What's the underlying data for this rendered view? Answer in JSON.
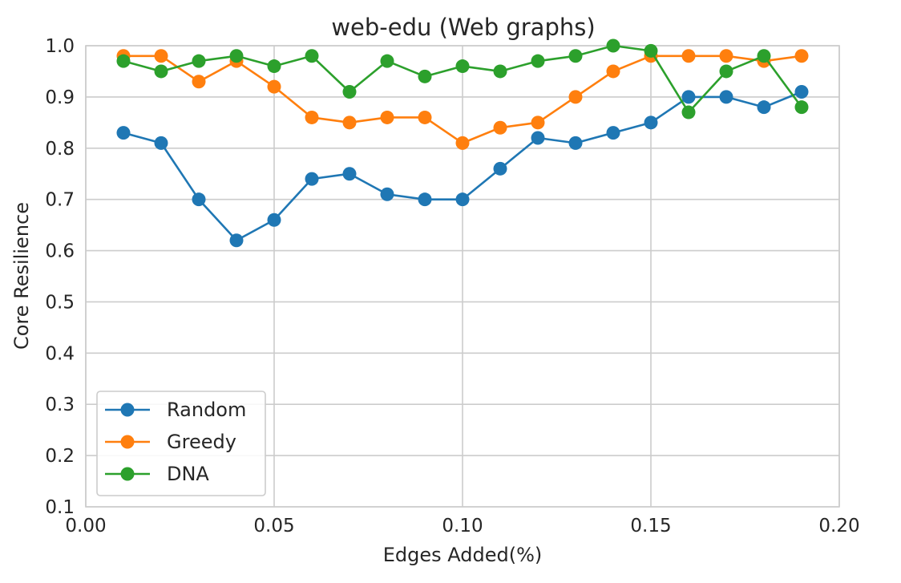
{
  "chart_data": {
    "type": "line",
    "title": "web-edu (Web graphs)",
    "xlabel": "Edges Added(%)",
    "ylabel": "Core Resilience",
    "xlim": [
      0.0,
      0.2
    ],
    "ylim": [
      0.1,
      1.0
    ],
    "xticks": [
      "0.00",
      "0.05",
      "0.10",
      "0.15",
      "0.20"
    ],
    "yticks": [
      "0.1",
      "0.2",
      "0.3",
      "0.4",
      "0.5",
      "0.6",
      "0.7",
      "0.8",
      "0.9",
      "1.0"
    ],
    "grid": true,
    "legend_position": "lower-left",
    "x": [
      0.01,
      0.02,
      0.03,
      0.04,
      0.05,
      0.06,
      0.07,
      0.08,
      0.09,
      0.1,
      0.11,
      0.12,
      0.13,
      0.14,
      0.15,
      0.16,
      0.17,
      0.18,
      0.19
    ],
    "series": [
      {
        "name": "Random",
        "color": "#1f77b4",
        "values": [
          0.83,
          0.81,
          0.7,
          0.62,
          0.66,
          0.74,
          0.75,
          0.71,
          0.7,
          0.7,
          0.76,
          0.82,
          0.81,
          0.83,
          0.85,
          0.9,
          0.9,
          0.88,
          0.91
        ]
      },
      {
        "name": "Greedy",
        "color": "#ff7f0e",
        "values": [
          0.98,
          0.98,
          0.93,
          0.97,
          0.92,
          0.86,
          0.85,
          0.86,
          0.86,
          0.81,
          0.84,
          0.85,
          0.9,
          0.95,
          0.98,
          0.98,
          0.98,
          0.97,
          0.98
        ]
      },
      {
        "name": "DNA",
        "color": "#2ca02c",
        "values": [
          0.97,
          0.95,
          0.97,
          0.98,
          0.96,
          0.98,
          0.91,
          0.97,
          0.94,
          0.96,
          0.95,
          0.97,
          0.98,
          1.0,
          0.99,
          0.87,
          0.95,
          0.98,
          0.88
        ]
      }
    ]
  }
}
